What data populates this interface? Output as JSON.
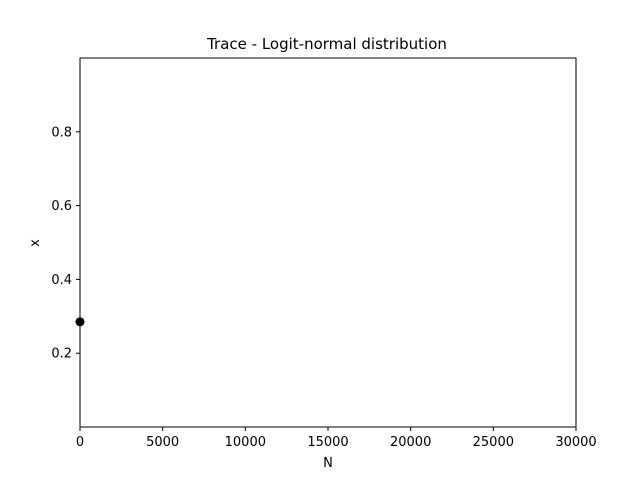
{
  "chart_data": {
    "type": "scatter",
    "title": "Trace - Logit-normal distribution",
    "xlabel": "N",
    "ylabel": "x",
    "xlim": [
      0,
      30000
    ],
    "ylim": [
      0,
      1
    ],
    "x_ticks": [
      0,
      5000,
      10000,
      15000,
      20000,
      25000,
      30000
    ],
    "x_tick_labels": [
      "0",
      "5000",
      "10000",
      "15000",
      "20000",
      "25000",
      "30000"
    ],
    "y_ticks": [
      0.2,
      0.4,
      0.6,
      0.8
    ],
    "y_tick_labels": [
      "0.2",
      "0.4",
      "0.6",
      "0.8"
    ],
    "grid": false,
    "series": [
      {
        "x": [
          0
        ],
        "y": [
          0.285
        ],
        "color": "#000000",
        "marker": "circle"
      }
    ]
  }
}
